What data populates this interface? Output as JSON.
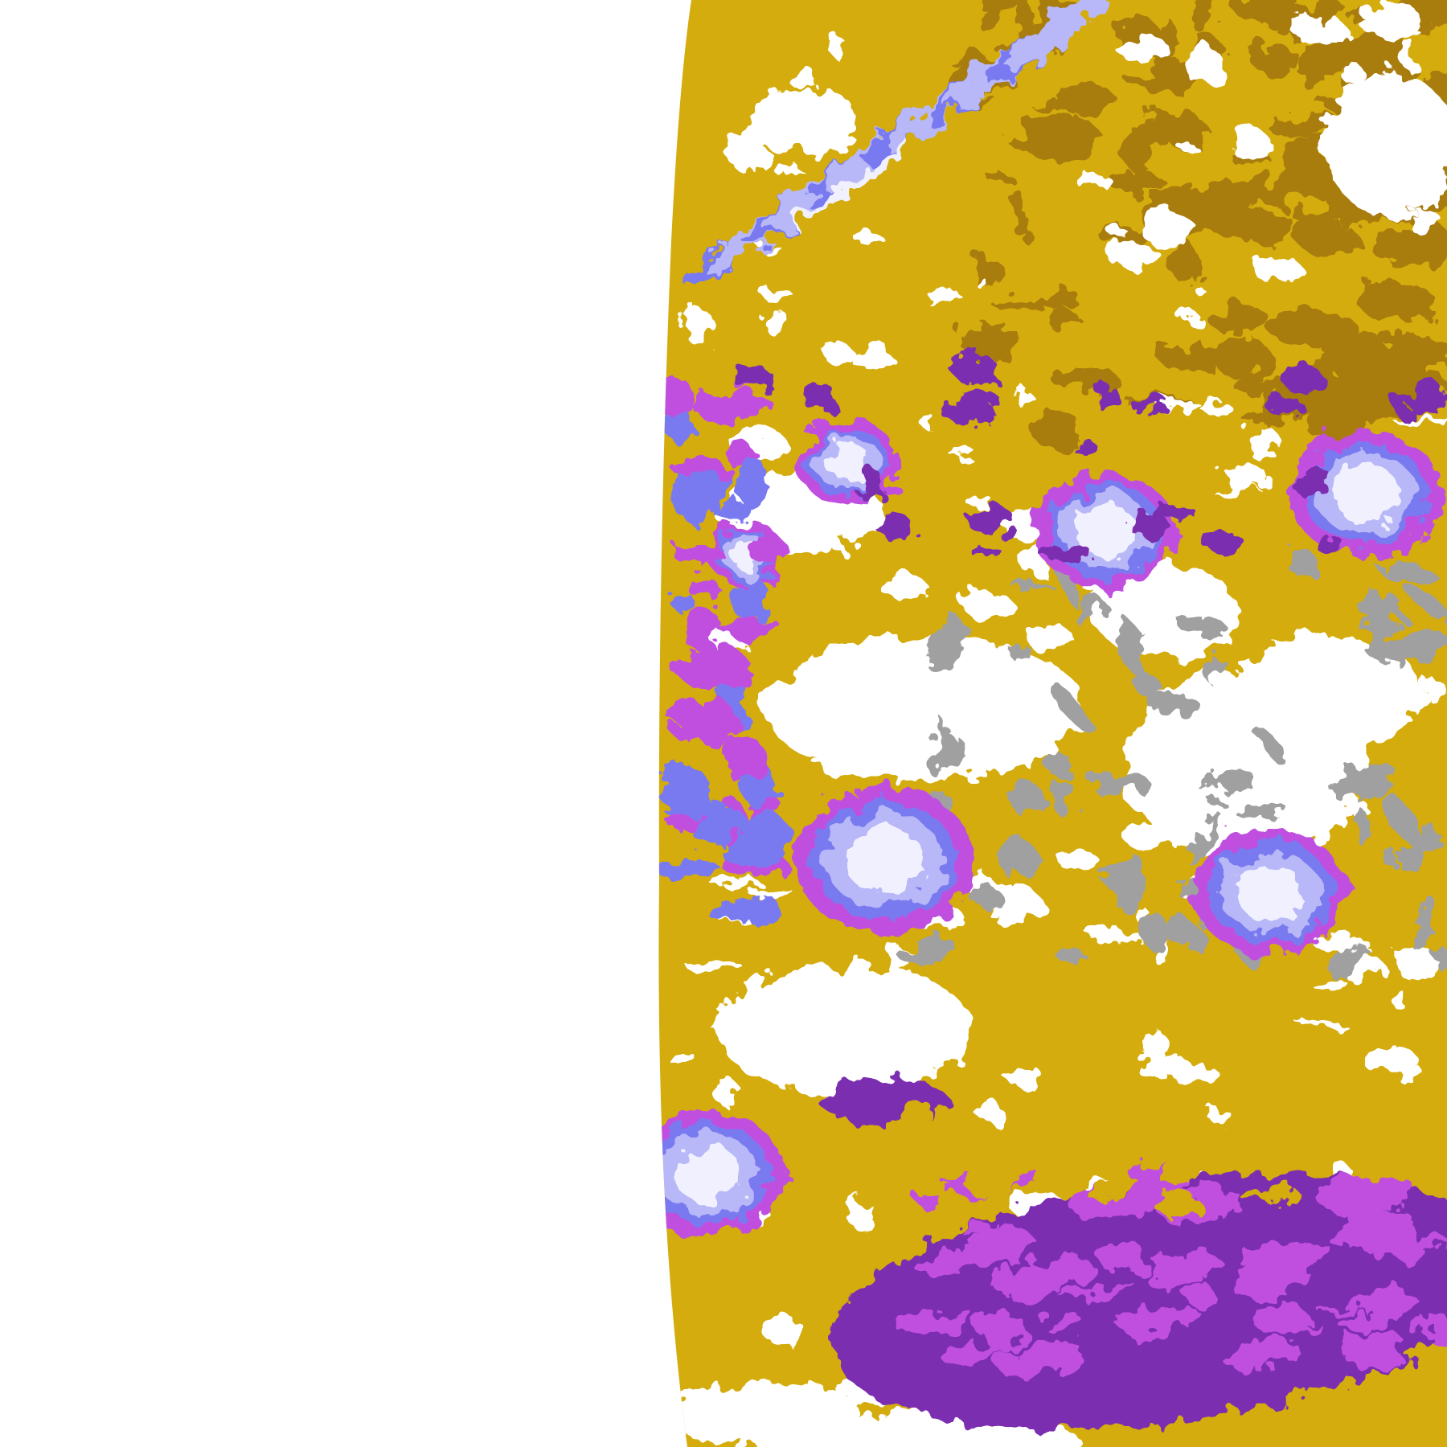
{
  "image": {
    "kind": "false-color satellite cloud imagery swath",
    "palette": {
      "background": "#ffffff",
      "clear_land": "#d4ac0d",
      "dark_land": "#a87c10",
      "deep_purple": "#7b2fb0",
      "magenta": "#c050e0",
      "blue_violet": "#7a7af0",
      "pale_lavender": "#b8b8f8",
      "cloud_white": "#f0f0ff",
      "gray": "#a0a0a0"
    }
  }
}
